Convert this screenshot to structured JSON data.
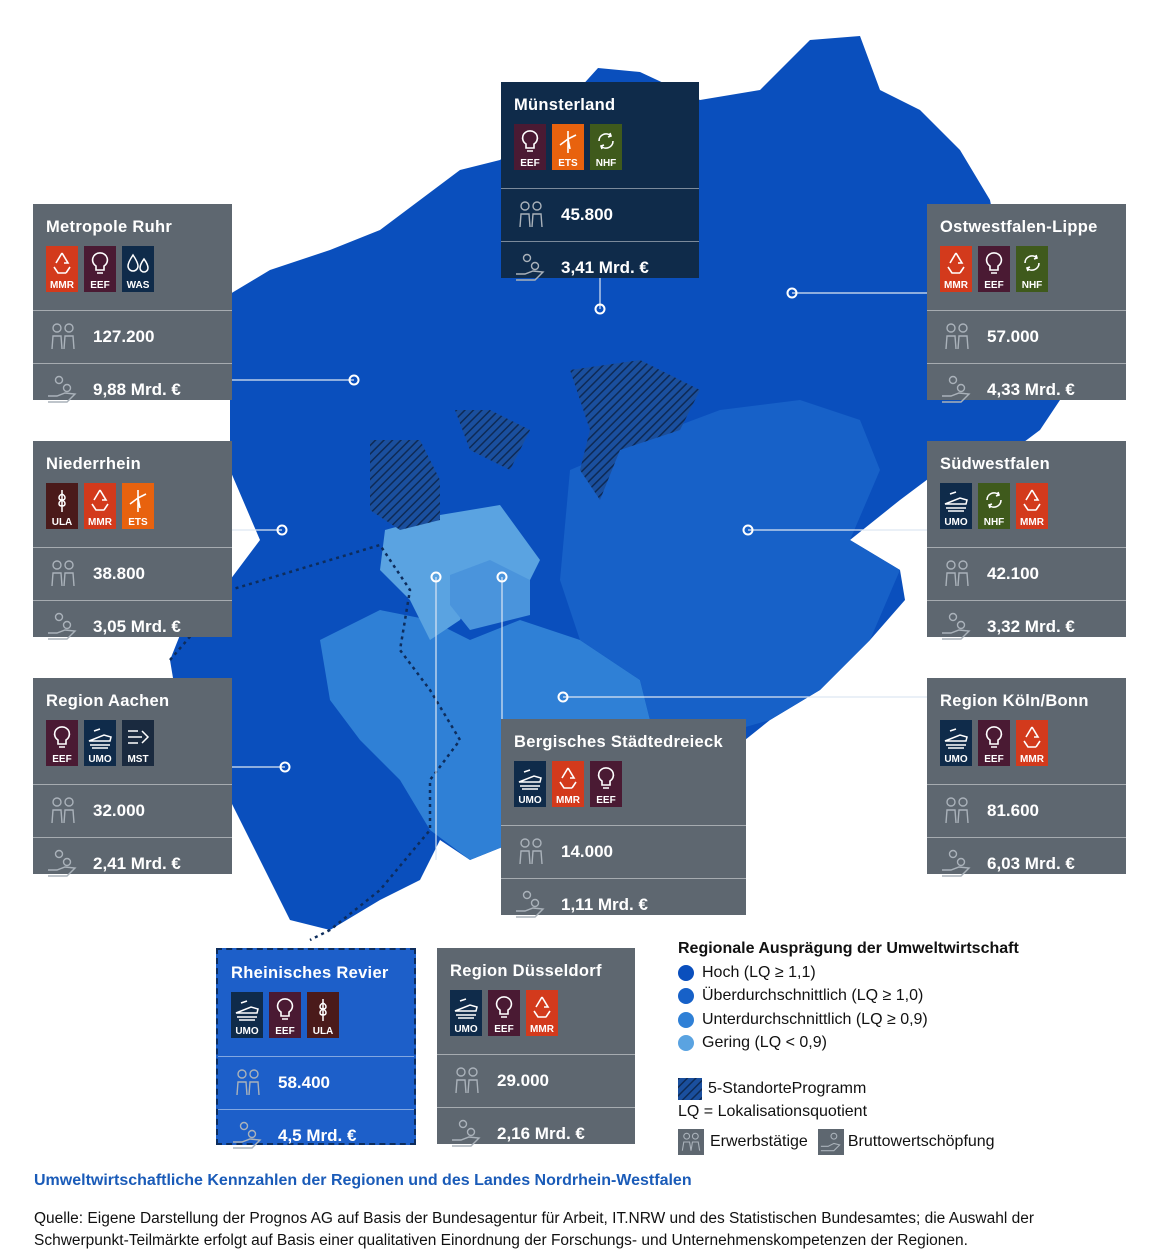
{
  "colors": {
    "hoch": "#0a4fbd",
    "ueber": "#1761c8",
    "unter": "#2f80d6",
    "gering": "#5aa3e1",
    "card": "#5e6770",
    "card_dark": "#0f2b4a",
    "mmr": "#d33a1c",
    "eef": "#4a1a33",
    "was": "#0f2b4a",
    "ets": "#e8620e",
    "nhf": "#3f5a1c",
    "ula": "#4a1a1a",
    "umo": "#0f2b4a",
    "mst": "#1a2a3f"
  },
  "regions": [
    {
      "name": "Münsterland",
      "badges": [
        "EEF",
        "ETS",
        "NHF"
      ],
      "employees": "45.800",
      "gva": "3,41 Mrd. €"
    },
    {
      "name": "Metropole Ruhr",
      "badges": [
        "MMR",
        "EEF",
        "WAS"
      ],
      "employees": "127.200",
      "gva": "9,88 Mrd. €"
    },
    {
      "name": "Ostwestfalen-Lippe",
      "badges": [
        "MMR",
        "EEF",
        "NHF"
      ],
      "employees": "57.000",
      "gva": "4,33 Mrd. €"
    },
    {
      "name": "Niederrhein",
      "badges": [
        "ULA",
        "MMR",
        "ETS"
      ],
      "employees": "38.800",
      "gva": "3,05 Mrd. €"
    },
    {
      "name": "Südwestfalen",
      "badges": [
        "UMO",
        "NHF",
        "MMR"
      ],
      "employees": "42.100",
      "gva": "3,32 Mrd. €"
    },
    {
      "name": "Region Aachen",
      "badges": [
        "EEF",
        "UMO",
        "MST"
      ],
      "employees": "32.000",
      "gva": "2,41 Mrd. €"
    },
    {
      "name": "Bergisches Städtedreieck",
      "badges": [
        "UMO",
        "MMR",
        "EEF"
      ],
      "employees": "14.000",
      "gva": "1,11 Mrd. €"
    },
    {
      "name": "Region Köln/Bonn",
      "badges": [
        "UMO",
        "EEF",
        "MMR"
      ],
      "employees": "81.600",
      "gva": "6,03 Mrd. €"
    },
    {
      "name": "Rheinisches Revier",
      "badges": [
        "UMO",
        "EEF",
        "ULA"
      ],
      "employees": "58.400",
      "gva": "4,5 Mrd. €"
    },
    {
      "name": "Region Düsseldorf",
      "badges": [
        "UMO",
        "EEF",
        "MMR"
      ],
      "employees": "29.000",
      "gva": "2,16 Mrd. €"
    }
  ],
  "legend": {
    "title": "Regionale Ausprägung der Umweltwirtschaft",
    "levels": [
      {
        "label": "Hoch (LQ ≥ 1,1)",
        "color": "#0a4fbd"
      },
      {
        "label": "Überdurchschnittlich (LQ ≥ 1,0)",
        "color": "#1761c8"
      },
      {
        "label": "Unterdurchschnittlich (LQ ≥ 0,9)",
        "color": "#2f80d6"
      },
      {
        "label": "Gering (LQ < 0,9)",
        "color": "#5aa3e1"
      }
    ],
    "program": "5-StandorteProgramm",
    "lq": "LQ = Lokalisationsquotient",
    "employees": "Erwerbstätige",
    "gva": "Bruttowertschöpfung"
  },
  "caption": "Umweltwirtschaftliche Kennzahlen der Regionen und des Landes Nordrhein-Westfalen",
  "source_line1": "Quelle: Eigene Darstellung der Prognos AG auf Basis der Bundesagentur für Arbeit, IT.NRW und des Statistischen Bundesamtes; die Auswahl der",
  "source_line2": "Schwerpunkt-Teilmärkte erfolgt auf Basis einer qualitativen Einordnung der Forschungs- und Unternehmenskompetenzen der Regionen."
}
